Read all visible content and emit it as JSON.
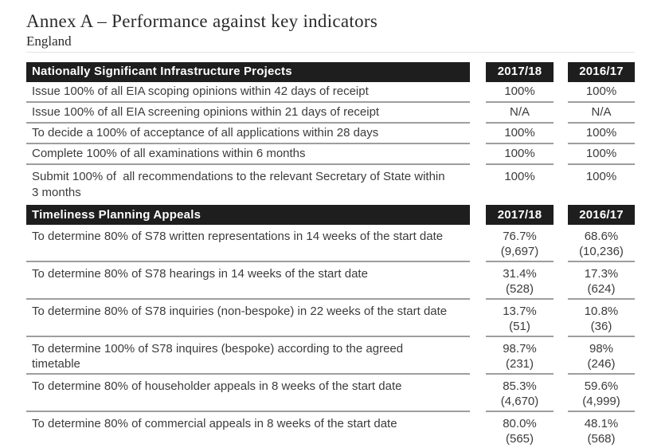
{
  "page": {
    "title": "Annex A – Performance against key indicators",
    "subtitle": "England"
  },
  "colors": {
    "header_bg": "#1e1e1e",
    "header_text": "#ffffff",
    "body_text": "#3b3b3b",
    "divider": "#9e9e9e",
    "light_rule": "#e4e4e4"
  },
  "tables": [
    {
      "header": {
        "label": "Nationally Significant Infrastructure Projects",
        "col1": "2017/18",
        "col2": "2016/17"
      },
      "rows": [
        {
          "desc": "Issue 100% of all EIA scoping opinions within 42 days of receipt",
          "v1": "100%",
          "v2": "100%"
        },
        {
          "desc": "Issue 100% of all EIA screening opinions within 21 days of receipt",
          "v1": "N/A",
          "v2": "N/A"
        },
        {
          "desc": "To decide a 100% of acceptance of all applications within 28 days",
          "v1": "100%",
          "v2": "100%"
        },
        {
          "desc": "Complete 100% of all examinations within 6 months",
          "v1": "100%",
          "v2": "100%"
        },
        {
          "desc": "Submit 100% of  all recommendations to the relevant Secretary of State within 3 months",
          "v1": "100%",
          "v2": "100%"
        }
      ]
    },
    {
      "header": {
        "label": "Timeliness Planning Appeals",
        "col1": "2017/18",
        "col2": "2016/17"
      },
      "rows": [
        {
          "desc": "To determine 80% of S78 written representations in 14 weeks of the start date",
          "v1": "76.7%",
          "v1b": "(9,697)",
          "v2": "68.6%",
          "v2b": "(10,236)"
        },
        {
          "desc": "To determine 80% of S78 hearings in 14 weeks of the start date",
          "v1": "31.4%",
          "v1b": "(528)",
          "v2": "17.3%",
          "v2b": "(624)"
        },
        {
          "desc": "To determine 80% of S78 inquiries (non-bespoke) in 22 weeks of the start date",
          "v1": "13.7%",
          "v1b": "(51)",
          "v2": "10.8%",
          "v2b": "(36)"
        },
        {
          "desc": "To determine 100% of S78 inquires (bespoke) according to the agreed timetable",
          "v1": "98.7%",
          "v1b": "(231)",
          "v2": "98%",
          "v2b": "(246)"
        },
        {
          "desc": "To determine 80% of householder appeals in 8 weeks of the start date",
          "v1": "85.3%",
          "v1b": "(4,670)",
          "v2": "59.6%",
          "v2b": "(4,999)"
        },
        {
          "desc": "To determine 80% of commercial appeals in 8 weeks of the start date",
          "v1": "80.0%",
          "v1b": "(565)",
          "v2": "48.1%",
          "v2b": "(568)"
        }
      ]
    }
  ]
}
